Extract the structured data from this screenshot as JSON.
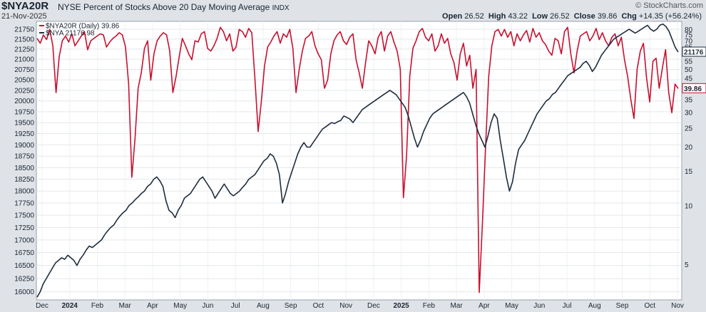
{
  "header": {
    "symbol": "$NYA20R",
    "description": "NYSE Percent of Stocks Above 20 Day Moving Average",
    "exchange": "INDX",
    "date": "21-Nov-2025",
    "brand": "© StockCharts.com",
    "open_label": "Open",
    "open": "26.52",
    "high_label": "High",
    "high": "43.22",
    "low_label": "Low",
    "low": "26.52",
    "close_label": "Close",
    "close": "39.86",
    "chg_label": "Chg",
    "chg": "+14.35 (+56.24%)"
  },
  "colors": {
    "primary": "#c8102e",
    "secondary": "#1f2d3d",
    "bg": "#ffffff",
    "grid": "#d6dbe0",
    "frame": "#dfe3e8"
  },
  "chart_data": {
    "type": "line",
    "x_ticks": [
      "Dec",
      "2024",
      "Feb",
      "Mar",
      "Apr",
      "May",
      "Jun",
      "Jul",
      "Aug",
      "Sep",
      "Oct",
      "Nov",
      "Dec",
      "2025",
      "Feb",
      "Mar",
      "Apr",
      "May",
      "Jun",
      "Jul",
      "Aug",
      "Sep",
      "Oct",
      "Nov"
    ],
    "left_axis_ticks": [
      "16000",
      "16250",
      "16500",
      "16750",
      "17000",
      "17250",
      "17500",
      "17750",
      "18000",
      "18250",
      "18500",
      "18750",
      "19000",
      "19250",
      "19500",
      "19750",
      "20000",
      "20250",
      "20500",
      "20750",
      "21000",
      "21250",
      "21500",
      "21750"
    ],
    "right_axis_ticks": [
      "5",
      "10",
      "15",
      "20",
      "25",
      "30",
      "35",
      "40",
      "45",
      "50",
      "55",
      "60",
      "65",
      "70",
      "75",
      "80"
    ],
    "left_scale": "log",
    "right_scale": "log",
    "series": [
      {
        "name": "$NYA20R (Daily)",
        "label_value": "39.86",
        "axis": "right",
        "color": "#c8102e",
        "values": [
          72,
          68,
          75,
          71,
          80,
          66,
          38,
          58,
          70,
          74,
          69,
          76,
          66,
          70,
          74,
          78,
          63,
          70,
          72,
          74,
          76,
          75,
          65,
          69,
          72,
          74,
          77,
          75,
          65,
          42,
          14,
          22,
          40,
          48,
          64,
          70,
          44,
          60,
          70,
          74,
          77,
          75,
          62,
          38,
          46,
          58,
          72,
          66,
          60,
          56,
          70,
          69,
          76,
          78,
          64,
          62,
          66,
          72,
          82,
          78,
          70,
          76,
          62,
          65,
          80,
          78,
          73,
          81,
          77,
          44,
          24,
          34,
          52,
          65,
          69,
          74,
          78,
          68,
          76,
          73,
          80,
          64,
          38,
          50,
          62,
          72,
          74,
          78,
          66,
          60,
          56,
          40,
          44,
          60,
          70,
          75,
          78,
          70,
          67,
          73,
          76,
          56,
          48,
          40,
          54,
          70,
          66,
          60,
          73,
          78,
          62,
          74,
          78,
          69,
          62,
          50,
          11,
          18,
          46,
          64,
          70,
          78,
          81,
          73,
          70,
          76,
          62,
          66,
          76,
          68,
          72,
          60,
          54,
          44,
          60,
          68,
          52,
          59,
          40,
          50,
          3.6,
          8,
          20,
          46,
          66,
          78,
          80,
          74,
          80,
          73,
          78,
          66,
          76,
          70,
          75,
          79,
          69,
          81,
          73,
          77,
          70,
          67,
          62,
          59,
          72,
          70,
          60,
          78,
          82,
          60,
          48,
          62,
          74,
          76,
          78,
          70,
          74,
          81,
          71,
          77,
          70,
          66,
          73,
          76,
          66,
          73,
          56,
          46,
          35,
          28,
          50,
          62,
          68,
          45,
          34,
          55,
          57,
          40,
          51,
          63,
          38,
          30,
          42,
          39.86
        ]
      },
      {
        "name": "$NYA",
        "label_value": "21176.98",
        "axis": "left",
        "color": "#1f2d3d",
        "values": [
          15900,
          16000,
          16150,
          16250,
          16350,
          16450,
          16550,
          16600,
          16650,
          16620,
          16700,
          16650,
          16600,
          16500,
          16620,
          16700,
          16800,
          16880,
          16850,
          16900,
          16950,
          17000,
          17100,
          17180,
          17250,
          17300,
          17400,
          17480,
          17550,
          17600,
          17700,
          17750,
          17820,
          17880,
          17950,
          18000,
          18100,
          18150,
          18250,
          18300,
          18220,
          18100,
          17800,
          17600,
          17550,
          17450,
          17600,
          17700,
          17850,
          17900,
          17950,
          18050,
          18150,
          18250,
          18300,
          18200,
          18100,
          18000,
          17850,
          17950,
          18050,
          18150,
          18050,
          17950,
          17900,
          17950,
          18000,
          18080,
          18150,
          18250,
          18300,
          18350,
          18450,
          18550,
          18650,
          18700,
          18800,
          18750,
          18600,
          18350,
          17750,
          17950,
          18200,
          18400,
          18600,
          18800,
          18950,
          19050,
          18950,
          18950,
          19050,
          19150,
          19250,
          19350,
          19400,
          19450,
          19500,
          19480,
          19520,
          19550,
          19650,
          19620,
          19580,
          19500,
          19600,
          19700,
          19800,
          19850,
          19900,
          19950,
          20000,
          20050,
          20100,
          20150,
          20200,
          20250,
          20200,
          20150,
          20050,
          19950,
          19850,
          19650,
          19400,
          19150,
          18950,
          19100,
          19300,
          19450,
          19600,
          19700,
          19750,
          19800,
          19850,
          19900,
          19950,
          20000,
          20050,
          20100,
          20150,
          20200,
          20100,
          19950,
          19700,
          19450,
          19250,
          19100,
          18950,
          19200,
          19500,
          19700,
          19600,
          19100,
          18700,
          18300,
          18000,
          18200,
          18600,
          18900,
          19000,
          19100,
          19250,
          19400,
          19550,
          19700,
          19800,
          19900,
          20000,
          20050,
          20150,
          20200,
          20300,
          20400,
          20500,
          20600,
          20650,
          20700,
          20750,
          20800,
          20900,
          20950,
          20850,
          20700,
          20800,
          20950,
          21100,
          21200,
          21300,
          21400,
          21500,
          21550,
          21600,
          21650,
          21700,
          21750,
          21700,
          21650,
          21700,
          21750,
          21800,
          21850,
          21750,
          21700,
          21750,
          21850,
          21880,
          21820,
          21700,
          21500,
          21300,
          21176.98
        ]
      }
    ]
  }
}
